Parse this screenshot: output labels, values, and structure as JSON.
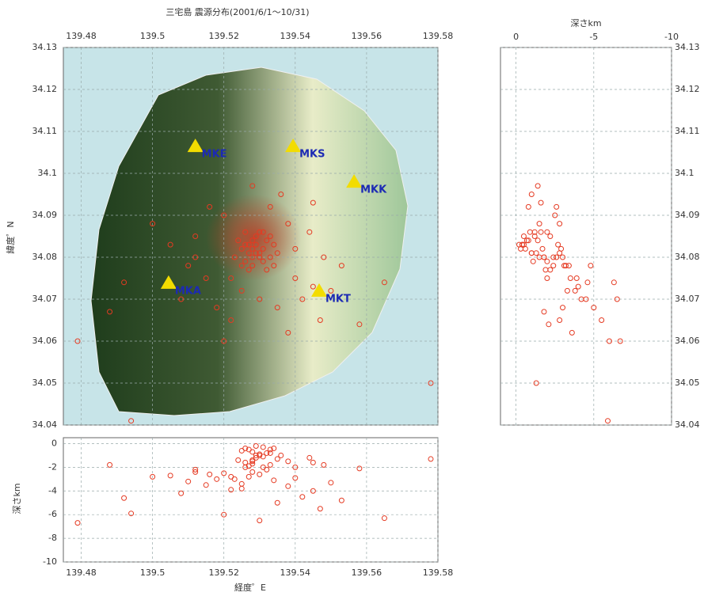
{
  "chart_data": {
    "type": "scatter",
    "title": "三宅島 震源分布(2001/6/1～10/31)",
    "x_label": "経度゜E",
    "y_label": "緯度゜N",
    "depth_label": "深さkm",
    "xlim": [
      139.475,
      139.58
    ],
    "xticks": [
      139.48,
      139.5,
      139.52,
      139.54,
      139.56,
      139.58
    ],
    "ylim": [
      34.04,
      34.13
    ],
    "yticks": [
      34.13,
      34.12,
      34.11,
      34.1,
      34.09,
      34.08,
      34.07,
      34.06,
      34.05,
      34.04
    ],
    "depth_xlim": [
      1,
      -10
    ],
    "depth_xticks": [
      0,
      -5,
      -10
    ],
    "depth_ylim": [
      -10,
      0.5
    ],
    "depth_yticks": [
      0,
      -2,
      -4,
      -6,
      -8,
      -10
    ],
    "grid": true,
    "color": "#e53a22",
    "station_color": "#f2dc00",
    "station_label_color": "#1c2ab4",
    "stations": [
      {
        "name": "MKE",
        "lon": 139.512,
        "lat": 34.1064
      },
      {
        "name": "MKS",
        "lon": 139.5394,
        "lat": 34.1064
      },
      {
        "name": "MKK",
        "lon": 139.5565,
        "lat": 34.0979
      },
      {
        "name": "MKA",
        "lon": 139.5045,
        "lat": 34.0738
      },
      {
        "name": "MKT",
        "lon": 139.5467,
        "lat": 34.0719
      }
    ],
    "x": [
      139.527,
      139.53,
      139.528,
      139.532,
      139.526,
      139.531,
      139.529,
      139.525,
      139.533,
      139.528,
      139.53,
      139.524,
      139.534,
      139.527,
      139.531,
      139.529,
      139.526,
      139.532,
      139.523,
      139.535,
      139.528,
      139.53,
      139.527,
      139.533,
      139.525,
      139.529,
      139.531,
      139.526,
      139.534,
      139.528,
      139.52,
      139.538,
      139.515,
      139.54,
      139.545,
      139.512,
      139.536,
      139.518,
      139.542,
      139.522,
      139.548,
      139.51,
      139.535,
      139.525,
      139.533,
      139.516,
      139.544,
      139.508,
      139.538,
      139.528,
      139.55,
      139.52,
      139.547,
      139.512,
      139.54,
      139.553,
      139.53,
      139.505,
      139.545,
      139.522,
      139.479,
      139.488,
      139.492,
      139.5,
      139.565,
      139.578,
      139.494,
      139.558
    ],
    "y": [
      34.083,
      34.081,
      34.08,
      34.084,
      34.079,
      34.082,
      34.085,
      34.082,
      34.08,
      34.078,
      34.086,
      34.084,
      34.083,
      34.081,
      34.079,
      34.083,
      34.086,
      34.077,
      34.08,
      34.081,
      34.084,
      34.08,
      34.077,
      34.085,
      34.078,
      34.081,
      34.086,
      34.083,
      34.078,
      34.082,
      34.09,
      34.088,
      34.075,
      34.075,
      34.073,
      34.085,
      34.095,
      34.068,
      34.07,
      34.065,
      34.08,
      34.078,
      34.068,
      34.072,
      34.092,
      34.092,
      34.086,
      34.07,
      34.062,
      34.097,
      34.072,
      34.06,
      34.065,
      34.08,
      34.082,
      34.078,
      34.07,
      34.083,
      34.093,
      34.075,
      34.06,
      34.067,
      34.074,
      34.088,
      34.074,
      34.05,
      34.041,
      34.064
    ],
    "depth": [
      -0.5,
      -1.0,
      -1.5,
      -0.8,
      -2.0,
      -0.3,
      -1.2,
      -0.6,
      -1.8,
      -2.4,
      -0.9,
      -1.4,
      -0.4,
      -2.8,
      -1.1,
      -0.2,
      -1.6,
      -2.2,
      -3.0,
      -1.3,
      -0.7,
      -2.6,
      -1.9,
      -0.5,
      -3.4,
      -1.0,
      -2.0,
      -0.4,
      -3.1,
      -1.7,
      -2.5,
      -1.5,
      -3.5,
      -2.0,
      -4.0,
      -2.2,
      -1.0,
      -3.0,
      -4.5,
      -2.8,
      -1.8,
      -3.2,
      -5.0,
      -3.8,
      -0.8,
      -2.6,
      -1.2,
      -4.2,
      -3.6,
      -1.4,
      -3.3,
      -6.0,
      -5.5,
      -2.4,
      -2.9,
      -4.8,
      -6.5,
      -2.7,
      -1.6,
      -3.9,
      -6.7,
      -1.8,
      -4.6,
      -2.8,
      -6.3,
      -1.3,
      -5.9,
      -2.1
    ]
  }
}
